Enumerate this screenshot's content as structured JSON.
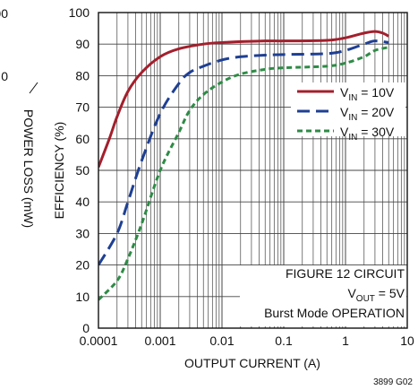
{
  "chart_data": {
    "type": "line",
    "title": "",
    "xlabel": "OUTPUT CURRENT (A)",
    "ylabel": "EFFICIENCY (%)",
    "y2label": "POWER LOSS (mW)",
    "y2ticks_partial": [
      "00",
      "0"
    ],
    "xscale": "log",
    "xlim": [
      0.0001,
      10
    ],
    "ylim": [
      0,
      100
    ],
    "xticks": [
      "0.0001",
      "0.001",
      "0.01",
      "0.1",
      "1",
      "10"
    ],
    "yticks": [
      "0",
      "10",
      "20",
      "30",
      "40",
      "50",
      "60",
      "70",
      "80",
      "90",
      "100"
    ],
    "grid": true,
    "legend_placement": "right",
    "series": [
      {
        "name": "V_IN = 10V",
        "legend_main": "V",
        "legend_sub": "IN",
        "legend_rest": " = 10V",
        "color": "#a31f2c",
        "dash": "solid",
        "x": [
          0.0001,
          0.00015,
          0.0002,
          0.0003,
          0.0005,
          0.001,
          0.002,
          0.005,
          0.01,
          0.05,
          0.1,
          0.5,
          1,
          2,
          3,
          4,
          5
        ],
        "y": [
          51,
          60,
          67,
          75,
          81,
          86,
          88.5,
          90,
          90.5,
          91,
          91,
          91.2,
          92,
          93.5,
          94,
          93.5,
          92.5
        ]
      },
      {
        "name": "V_IN = 20V",
        "legend_main": "V",
        "legend_sub": "IN",
        "legend_rest": " = 20V",
        "color": "#1e3f93",
        "dash": "long",
        "x": [
          0.0001,
          0.0002,
          0.0003,
          0.0005,
          0.001,
          0.002,
          0.003,
          0.005,
          0.01,
          0.02,
          0.05,
          0.1,
          0.5,
          1,
          2,
          3,
          5
        ],
        "y": [
          20,
          30,
          40,
          53,
          68,
          77.5,
          81,
          83,
          85,
          86,
          86.5,
          86.7,
          87,
          88,
          90,
          91,
          90.5
        ]
      },
      {
        "name": "V_IN = 30V",
        "legend_main": "V",
        "legend_sub": "IN",
        "legend_rest": " = 30V",
        "color": "#2e8b46",
        "dash": "short",
        "x": [
          0.0001,
          0.0002,
          0.0003,
          0.0005,
          0.001,
          0.002,
          0.003,
          0.005,
          0.01,
          0.02,
          0.05,
          0.1,
          0.5,
          1,
          2,
          3,
          5
        ],
        "y": [
          9,
          15,
          22,
          33,
          50,
          62,
          69,
          74,
          78,
          80.5,
          82,
          82.5,
          83,
          84,
          86,
          88,
          89
        ]
      }
    ],
    "annotations": {
      "line1": "FIGURE 12 CIRCUIT",
      "line2_main": "V",
      "line2_sub": "OUT",
      "line2_rest": " = 5V",
      "line3": "Burst Mode OPERATION"
    },
    "figure_id": "3899 G02"
  }
}
